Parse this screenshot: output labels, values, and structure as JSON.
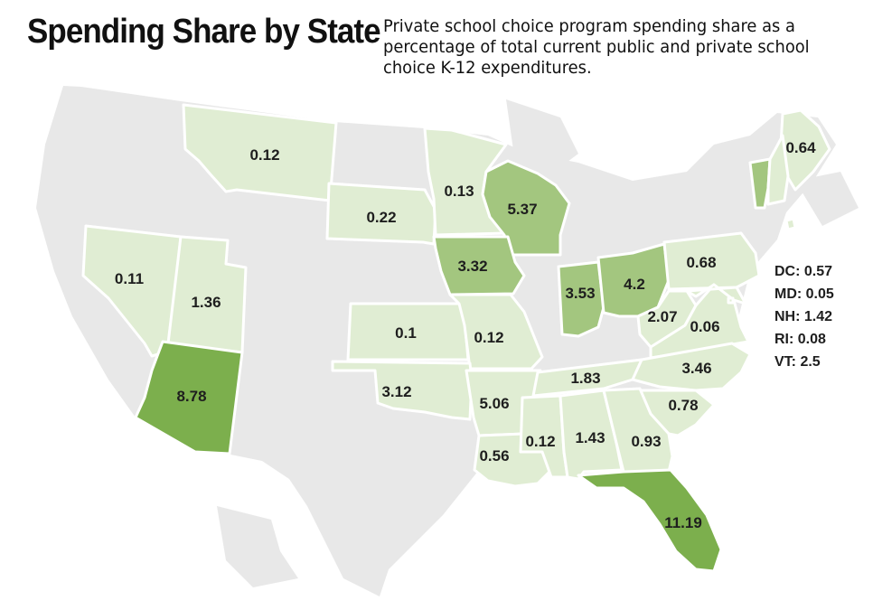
{
  "title": "Spending Share by State",
  "subtitle": "Private school choice program spending share as a percentage of total current public and private school choice K-12 expenditures.",
  "colors": {
    "no_data": "#e6e6e6",
    "low": "#e0edd3",
    "mid": "#a3c67f",
    "high": "#7caf4d",
    "stroke": "#ffffff"
  },
  "states": [
    {
      "code": "MT",
      "value": "0.12",
      "tier": "low"
    },
    {
      "code": "SD",
      "value": "0.22",
      "tier": "low"
    },
    {
      "code": "MN",
      "value": "0.13",
      "tier": "low"
    },
    {
      "code": "WI",
      "value": "5.37",
      "tier": "mid"
    },
    {
      "code": "ME",
      "value": "0.64",
      "tier": "low"
    },
    {
      "code": "VT",
      "tier": "mid"
    },
    {
      "code": "NH",
      "tier": "low"
    },
    {
      "code": "NV",
      "value": "0.11",
      "tier": "low"
    },
    {
      "code": "UT",
      "value": "1.36",
      "tier": "low"
    },
    {
      "code": "IA",
      "value": "3.32",
      "tier": "mid"
    },
    {
      "code": "IN",
      "value": "3.53",
      "tier": "mid"
    },
    {
      "code": "OH",
      "value": "4.2",
      "tier": "mid"
    },
    {
      "code": "PA",
      "value": "0.68",
      "tier": "low"
    },
    {
      "code": "KS",
      "value": "0.1",
      "tier": "low"
    },
    {
      "code": "MO",
      "value": "0.12",
      "tier": "low"
    },
    {
      "code": "WV",
      "value": "2.07",
      "tier": "low"
    },
    {
      "code": "VA",
      "value": "0.06",
      "tier": "low"
    },
    {
      "code": "MD",
      "tier": "low"
    },
    {
      "code": "DC",
      "tier": "low"
    },
    {
      "code": "RI",
      "tier": "low"
    },
    {
      "code": "AZ",
      "value": "8.78",
      "tier": "high"
    },
    {
      "code": "OK",
      "value": "3.12",
      "tier": "low"
    },
    {
      "code": "AR",
      "value": "5.06",
      "tier": "low"
    },
    {
      "code": "TN",
      "value": "1.83",
      "tier": "low"
    },
    {
      "code": "NC",
      "value": "3.46",
      "tier": "low"
    },
    {
      "code": "SC",
      "value": "0.78",
      "tier": "low"
    },
    {
      "code": "LA",
      "value": "0.56",
      "tier": "low"
    },
    {
      "code": "MS",
      "value": "0.12",
      "tier": "low"
    },
    {
      "code": "AL",
      "value": "1.43",
      "tier": "low"
    },
    {
      "code": "GA",
      "value": "0.93",
      "tier": "low"
    },
    {
      "code": "FL",
      "value": "11.19",
      "tier": "high"
    }
  ],
  "side_list": [
    "DC: 0.57",
    "MD: 0.05",
    "NH: 1.42",
    "RI: 0.08",
    "VT: 2.5"
  ]
}
